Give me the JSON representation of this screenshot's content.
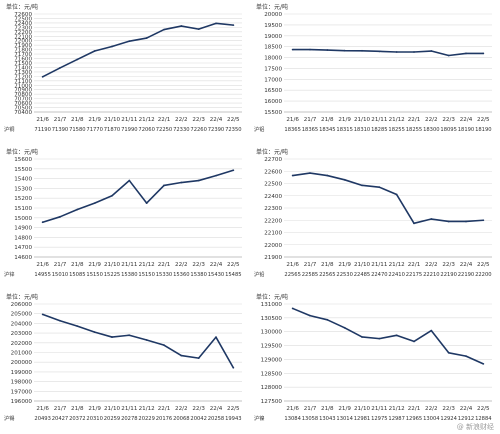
{
  "watermark": "@ 新浪财经",
  "chart_data": [
    {
      "type": "line",
      "unit_label": "单位：元/吨",
      "categories": [
        "21/6",
        "21/7",
        "21/8",
        "21/9",
        "21/10",
        "21/11",
        "21/12",
        "22/1",
        "22/2",
        "22/3",
        "22/4",
        "22/5"
      ],
      "row_label": "沪铜",
      "values": [
        71190,
        71390,
        71580,
        71770,
        71870,
        71990,
        72060,
        72250,
        72330,
        72260,
        72390,
        72350
      ],
      "ylim": [
        70400,
        72600
      ],
      "yticks": [
        70400,
        70500,
        70600,
        70700,
        70800,
        70900,
        71000,
        71100,
        71200,
        71300,
        71400,
        71500,
        71600,
        71700,
        71800,
        71900,
        72000,
        72100,
        72200,
        72300,
        72400,
        72500,
        72600
      ],
      "color": "#1f3864"
    },
    {
      "type": "line",
      "unit_label": "单位：元/吨",
      "categories": [
        "21/6",
        "21/7",
        "21/8",
        "21/9",
        "21/10",
        "21/11",
        "21/12",
        "22/1",
        "22/2",
        "22/3",
        "22/4",
        "22/5"
      ],
      "row_label": "沪铝",
      "values": [
        18365,
        18365,
        18345,
        18315,
        18310,
        18285,
        18255,
        18255,
        18300,
        18095,
        18190,
        18190
      ],
      "ylim": [
        15500,
        20000
      ],
      "yticks": [
        15500,
        16000,
        16500,
        17000,
        17500,
        18000,
        18500,
        19000,
        19500,
        20000
      ],
      "color": "#1f3864"
    },
    {
      "type": "line",
      "unit_label": "单位：元/吨",
      "categories": [
        "21/6",
        "21/7",
        "21/8",
        "21/9",
        "21/10",
        "21/11",
        "21/12",
        "22/1",
        "22/2",
        "22/3",
        "22/4",
        "22/5"
      ],
      "row_label": "沪锌",
      "values": [
        14955,
        15010,
        15085,
        15150,
        15225,
        15380,
        15150,
        15330,
        15360,
        15380,
        15430,
        15485
      ],
      "ylim": [
        14600,
        15600
      ],
      "yticks": [
        14600,
        14700,
        14800,
        14900,
        15000,
        15100,
        15200,
        15300,
        15400,
        15500,
        15600
      ],
      "color": "#1f3864"
    },
    {
      "type": "line",
      "unit_label": "单位：元/吨",
      "categories": [
        "21/6",
        "21/7",
        "21/8",
        "21/9",
        "21/10",
        "21/11",
        "21/12",
        "22/1",
        "22/2",
        "22/3",
        "22/4",
        "22/5"
      ],
      "row_label": "沪铅",
      "values": [
        22565,
        22585,
        22565,
        22530,
        22485,
        22470,
        22410,
        22175,
        22210,
        22190,
        22190,
        22200
      ],
      "ylim": [
        21900,
        22700
      ],
      "yticks": [
        21900,
        22000,
        22100,
        22200,
        22300,
        22400,
        22500,
        22600,
        22700
      ],
      "color": "#1f3864"
    },
    {
      "type": "line",
      "unit_label": "单位：元/吨",
      "categories": [
        "21/6",
        "21/7",
        "21/8",
        "21/9",
        "21/10",
        "21/11",
        "21/12",
        "22/1",
        "22/2",
        "22/3",
        "22/4",
        "22/5"
      ],
      "row_label": "沪锡",
      "values": [
        20493,
        20427,
        20372,
        20310,
        20259,
        20278,
        20229,
        20176,
        20068,
        20042,
        20258,
        19943
      ],
      "ylim": [
        196000,
        206000
      ],
      "yticks": [
        196000,
        197000,
        198000,
        199000,
        200000,
        201000,
        202000,
        203000,
        204000,
        205000,
        206000
      ],
      "plot_scale": 10,
      "color": "#1f3864"
    },
    {
      "type": "line",
      "unit_label": "单位：元/吨",
      "categories": [
        "21/6",
        "21/7",
        "21/8",
        "21/9",
        "21/10",
        "21/11",
        "21/12",
        "22/1",
        "22/2",
        "22/3",
        "22/4",
        "22/5"
      ],
      "row_label": "沪镍",
      "values": [
        13084,
        13058,
        13043,
        13014,
        12981,
        12975,
        12987,
        12965,
        13004,
        12924,
        12912,
        12884
      ],
      "ylim": [
        127500,
        131000
      ],
      "yticks": [
        127500,
        128000,
        128500,
        129000,
        129500,
        130000,
        130500,
        131000
      ],
      "plot_scale": 10,
      "color": "#1f3864"
    }
  ]
}
